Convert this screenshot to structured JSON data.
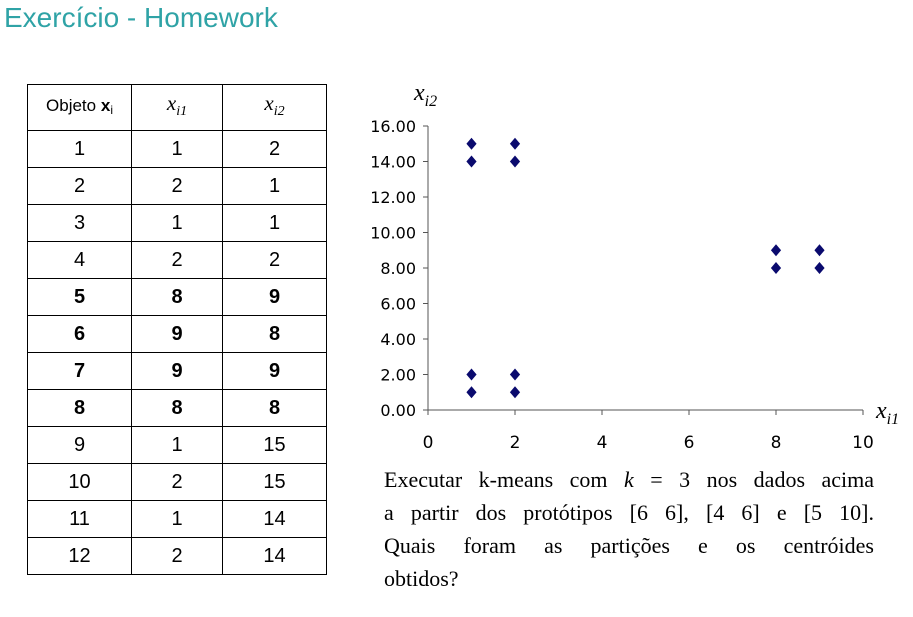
{
  "title": "Exercício - Homework",
  "table": {
    "header": {
      "col1_text": "Objeto",
      "col1_bold": "x",
      "col1_sub": "i",
      "col2_var": "x",
      "col2_sub": "i1",
      "col3_var": "x",
      "col3_sub": "i2"
    },
    "rows": [
      {
        "obj": "1",
        "x1": "1",
        "x2": "2",
        "bold": false
      },
      {
        "obj": "2",
        "x1": "2",
        "x2": "1",
        "bold": false
      },
      {
        "obj": "3",
        "x1": "1",
        "x2": "1",
        "bold": false
      },
      {
        "obj": "4",
        "x1": "2",
        "x2": "2",
        "bold": false
      },
      {
        "obj": "5",
        "x1": "8",
        "x2": "9",
        "bold": true
      },
      {
        "obj": "6",
        "x1": "9",
        "x2": "8",
        "bold": true
      },
      {
        "obj": "7",
        "x1": "9",
        "x2": "9",
        "bold": true
      },
      {
        "obj": "8",
        "x1": "8",
        "x2": "8",
        "bold": true
      },
      {
        "obj": "9",
        "x1": "1",
        "x2": "15",
        "bold": false
      },
      {
        "obj": "10",
        "x1": "2",
        "x2": "15",
        "bold": false
      },
      {
        "obj": "11",
        "x1": "1",
        "x2": "14",
        "bold": false
      },
      {
        "obj": "12",
        "x1": "2",
        "x2": "14",
        "bold": false
      }
    ]
  },
  "chart_data": {
    "type": "scatter",
    "xlabel_var": "x",
    "xlabel_sub": "i1",
    "ylabel_var": "x",
    "ylabel_sub": "i2",
    "xlim": [
      0,
      10
    ],
    "ylim": [
      0,
      16
    ],
    "xticks": [
      "0",
      "2",
      "4",
      "6",
      "8",
      "10"
    ],
    "yticks": [
      "0.00",
      "2.00",
      "4.00",
      "6.00",
      "8.00",
      "10.00",
      "12.00",
      "14.00",
      "16.00"
    ],
    "marker": "diamond",
    "marker_color": "#0a0a6e",
    "grid": false,
    "points": [
      {
        "x": 1,
        "y": 2
      },
      {
        "x": 2,
        "y": 1
      },
      {
        "x": 1,
        "y": 1
      },
      {
        "x": 2,
        "y": 2
      },
      {
        "x": 8,
        "y": 9
      },
      {
        "x": 9,
        "y": 8
      },
      {
        "x": 9,
        "y": 9
      },
      {
        "x": 8,
        "y": 8
      },
      {
        "x": 1,
        "y": 15
      },
      {
        "x": 2,
        "y": 15
      },
      {
        "x": 1,
        "y": 14
      },
      {
        "x": 2,
        "y": 14
      }
    ]
  },
  "exercise": {
    "line1_a": "Executar k-means com",
    "line1_k": "k",
    "line1_b": "= 3 nos dados acima",
    "line2": "a partir dos protótipos [6 6], [4 6] e [5 10].",
    "line3": "Quais foram as partições e os centróides",
    "line4": "obtidos?"
  }
}
